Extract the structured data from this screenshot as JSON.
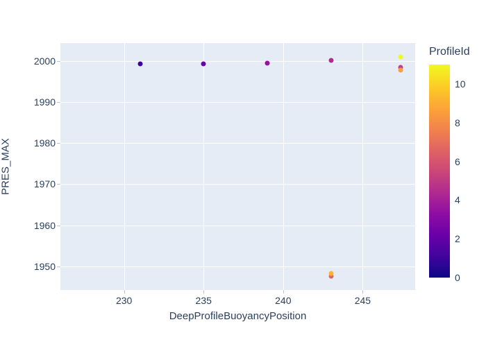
{
  "figure": {
    "background_color": "#ffffff",
    "plot_background_color": "#e5ecf6",
    "grid_color": "#ffffff",
    "text_color": "#2a3f5f",
    "tick_mark_color": "#b9c6da"
  },
  "chart_data": {
    "type": "scatter",
    "title": "",
    "xlabel": "DeepProfileBuoyancyPosition",
    "ylabel": "PRES_MAX",
    "xlim": [
      226.0,
      248.3
    ],
    "ylim": [
      1944.2,
      2004.4
    ],
    "x_ticks": [
      230,
      235,
      240,
      245
    ],
    "y_ticks": [
      1950,
      1960,
      1970,
      1980,
      1990,
      2000
    ],
    "grid": true,
    "legend_position": "colorbar-right",
    "colorbar": {
      "title": "ProfileId",
      "min": 0,
      "max": 11,
      "ticks": [
        0,
        2,
        4,
        6,
        8,
        10
      ],
      "colorscale": "plasma",
      "gradient_stops_bottom_to_top": [
        "#0d0887",
        "#41049d",
        "#6a00a8",
        "#8f0da4",
        "#b12a90",
        "#cc4778",
        "#e16462",
        "#f2844b",
        "#fca636",
        "#fcce25",
        "#f0f921"
      ]
    },
    "points": [
      {
        "x": 231.0,
        "y": 1999.3,
        "profile_id": 1,
        "color": "#3d049b"
      },
      {
        "x": 235.0,
        "y": 1999.3,
        "profile_id": 2,
        "color": "#6a00a8"
      },
      {
        "x": 239.0,
        "y": 1999.5,
        "profile_id": 3,
        "color": "#9511a1"
      },
      {
        "x": 243.0,
        "y": 2000.2,
        "profile_id": 5,
        "color": "#b02a8f"
      },
      {
        "x": 247.4,
        "y": 1998.5,
        "profile_id": 6,
        "color": "#c5407e"
      },
      {
        "x": 243.0,
        "y": 1947.6,
        "profile_id": 7,
        "color": "#e16462"
      },
      {
        "x": 247.4,
        "y": 1997.8,
        "profile_id": 8,
        "color": "#fb9f3a"
      },
      {
        "x": 243.0,
        "y": 1948.3,
        "profile_id": 9,
        "color": "#fdb32f"
      },
      {
        "x": 247.4,
        "y": 2001.0,
        "profile_id": 11,
        "color": "#f0f921"
      }
    ]
  }
}
